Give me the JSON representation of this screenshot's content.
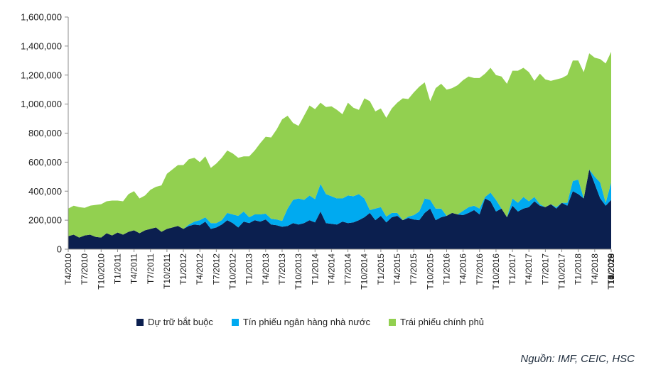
{
  "chart_data": {
    "type": "area",
    "stacked": true,
    "grid": false,
    "legend_position": "bottom",
    "y_ticks": [
      "0",
      "200,000",
      "400,000",
      "600,000",
      "800,000",
      "1,000,000",
      "1,200,000",
      "1,400,000",
      "1,600,000"
    ],
    "ylim": [
      0,
      1600000
    ],
    "x_start": "T4/2010",
    "x_ticks": [
      "T4/2010",
      "T7/2010",
      "T10/2010",
      "T1/2011",
      "T4/2011",
      "T7/2011",
      "T10/2011",
      "T1/2012",
      "T4/2012",
      "T7/2012",
      "T10/2012",
      "T1/2013",
      "T4/2013",
      "T7/2013",
      "T10/2013",
      "T1/2014",
      "T4/2014",
      "T7/2014",
      "T10/2014",
      "T1/2015",
      "T4/2015",
      "T7/2015",
      "T10/2015",
      "T1/2016",
      "T4/2016",
      "T7/2016",
      "T10/2016",
      "T1/2017",
      "T4/2017",
      "T7/2017",
      "T10/2017",
      "T1/2018",
      "T4/2018",
      "T7/2018",
      "T10/2018",
      "T1/2019",
      "T4/2019",
      "T7/2019",
      "T10/2019",
      "T1/2020",
      "T4/2020"
    ],
    "series": [
      {
        "name": "Dự trữ bắt buộc",
        "color": "#0b1f4f",
        "values": [
          90000,
          100000,
          80000,
          95000,
          100000,
          85000,
          80000,
          110000,
          95000,
          115000,
          100000,
          120000,
          130000,
          110000,
          130000,
          140000,
          150000,
          120000,
          140000,
          150000,
          160000,
          140000,
          160000,
          170000,
          165000,
          190000,
          140000,
          150000,
          170000,
          200000,
          180000,
          150000,
          190000,
          180000,
          200000,
          190000,
          205000,
          170000,
          165000,
          155000,
          160000,
          180000,
          170000,
          180000,
          200000,
          185000,
          260000,
          180000,
          175000,
          170000,
          190000,
          180000,
          185000,
          200000,
          220000,
          250000,
          200000,
          230000,
          185000,
          220000,
          230000,
          200000,
          215000,
          205000,
          200000,
          250000,
          280000,
          200000,
          220000,
          230000,
          250000,
          240000,
          235000,
          250000,
          270000,
          240000,
          350000,
          330000,
          260000,
          280000,
          220000,
          300000,
          260000,
          280000,
          290000,
          330000,
          300000,
          290000,
          310000,
          280000,
          320000,
          300000,
          400000,
          380000,
          350000,
          550000,
          450000,
          350000,
          300000,
          340000
        ]
      },
      {
        "name": "Tín phiếu ngân hàng nhà nước",
        "color": "#00aaf0",
        "values": [
          0,
          0,
          0,
          0,
          0,
          0,
          0,
          0,
          0,
          0,
          0,
          0,
          0,
          0,
          0,
          0,
          0,
          0,
          0,
          0,
          0,
          0,
          10000,
          20000,
          35000,
          30000,
          40000,
          30000,
          30000,
          50000,
          60000,
          80000,
          70000,
          40000,
          40000,
          50000,
          40000,
          40000,
          40000,
          40000,
          120000,
          160000,
          180000,
          160000,
          170000,
          160000,
          190000,
          200000,
          190000,
          180000,
          160000,
          190000,
          180000,
          180000,
          130000,
          20000,
          80000,
          60000,
          40000,
          30000,
          20000,
          0,
          10000,
          30000,
          60000,
          100000,
          60000,
          80000,
          60000,
          0,
          0,
          0,
          30000,
          40000,
          30000,
          40000,
          10000,
          60000,
          80000,
          0,
          0,
          50000,
          60000,
          80000,
          40000,
          30000,
          10000,
          0,
          0,
          10000,
          0,
          20000,
          70000,
          100000,
          0,
          0,
          50000,
          110000,
          20000,
          120000
        ]
      },
      {
        "name": "Trái phiếu chính phủ",
        "color": "#92d050",
        "values": [
          190000,
          200000,
          210000,
          190000,
          200000,
          220000,
          230000,
          220000,
          240000,
          220000,
          230000,
          260000,
          270000,
          240000,
          240000,
          270000,
          280000,
          320000,
          380000,
          400000,
          420000,
          440000,
          450000,
          440000,
          400000,
          420000,
          380000,
          410000,
          430000,
          430000,
          420000,
          400000,
          380000,
          420000,
          440000,
          490000,
          530000,
          560000,
          620000,
          700000,
          640000,
          530000,
          500000,
          580000,
          620000,
          620000,
          560000,
          600000,
          620000,
          610000,
          580000,
          640000,
          610000,
          580000,
          690000,
          750000,
          670000,
          680000,
          680000,
          720000,
          760000,
          840000,
          810000,
          845000,
          860000,
          800000,
          680000,
          830000,
          860000,
          870000,
          860000,
          890000,
          900000,
          900000,
          880000,
          900000,
          850000,
          860000,
          860000,
          910000,
          920000,
          880000,
          910000,
          890000,
          890000,
          800000,
          900000,
          880000,
          850000,
          880000,
          860000,
          880000,
          830000,
          820000,
          870000,
          800000,
          820000,
          850000,
          960000,
          900000
        ]
      }
    ]
  },
  "legend": {
    "items": [
      {
        "label": "Dự trữ bắt buộc",
        "color": "#0b1f4f"
      },
      {
        "label": "Tín phiếu ngân hàng nhà nước",
        "color": "#00aaf0"
      },
      {
        "label": "Trái phiếu chính phủ",
        "color": "#92d050"
      }
    ]
  },
  "source": "Nguồn: IMF, CEIC, HSC"
}
